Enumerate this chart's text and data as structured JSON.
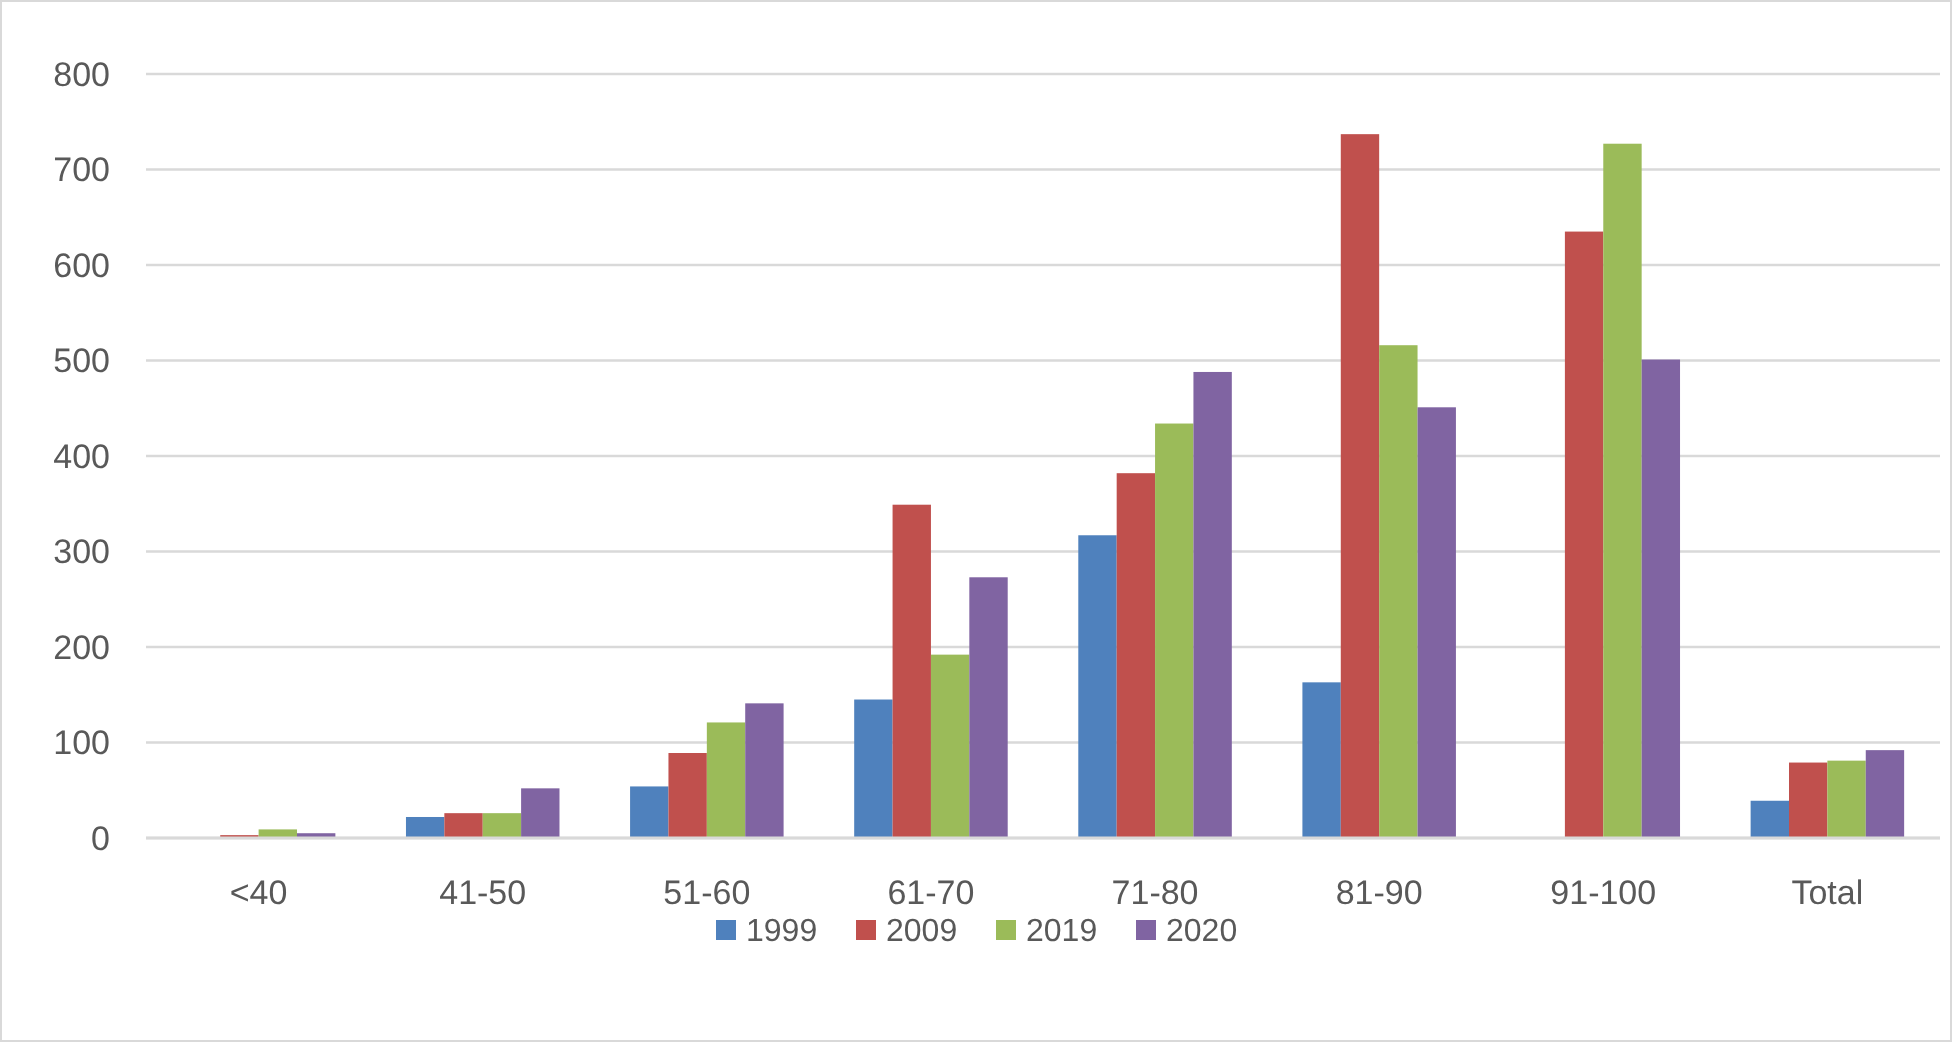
{
  "chart_data": {
    "type": "bar",
    "categories": [
      "<40",
      "41-50",
      "51-60",
      "61-70",
      "71-80",
      "81-90",
      "91-100",
      "Total"
    ],
    "series": [
      {
        "name": "1999",
        "color": "#4f81bd",
        "values": [
          0,
          22,
          54,
          145,
          317,
          163,
          null,
          39
        ]
      },
      {
        "name": "2009",
        "color": "#c0504d",
        "values": [
          3,
          26,
          89,
          349,
          382,
          737,
          635,
          79
        ]
      },
      {
        "name": "2019",
        "color": "#9bbb59",
        "values": [
          9,
          26,
          121,
          192,
          434,
          516,
          727,
          81
        ]
      },
      {
        "name": "2020",
        "color": "#8064a2",
        "values": [
          5,
          52,
          141,
          273,
          488,
          451,
          501,
          92
        ]
      }
    ],
    "ylim": [
      0,
      800
    ],
    "yticks": [
      0,
      100,
      200,
      300,
      400,
      500,
      600,
      700,
      800
    ],
    "grid": "y",
    "legend": "bottom"
  }
}
